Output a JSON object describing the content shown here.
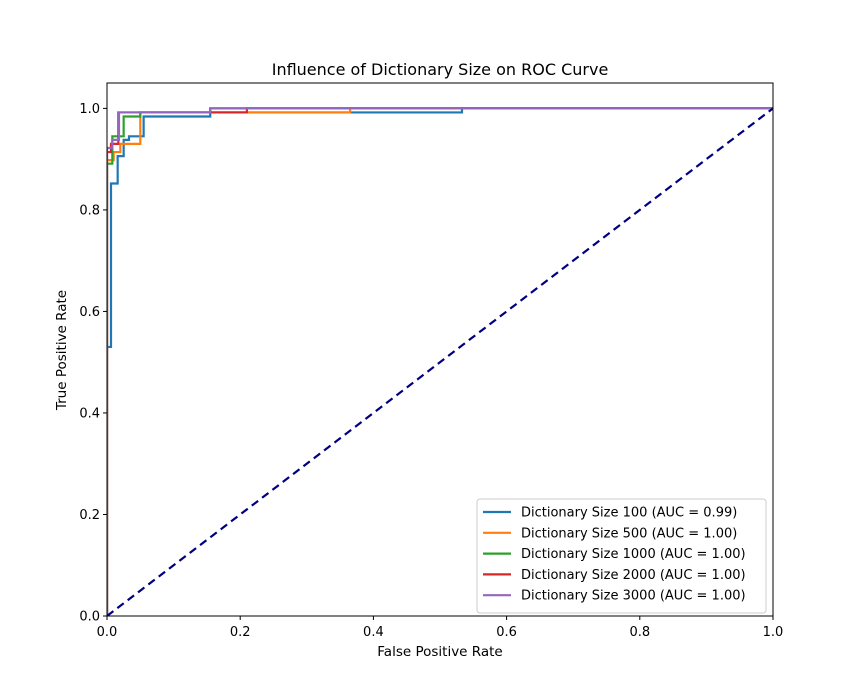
{
  "chart_data": {
    "type": "line",
    "title": "Influence of Dictionary Size on ROC Curve",
    "xlabel": "False Positive Rate",
    "ylabel": "True Positive Rate",
    "xlim": [
      0.0,
      1.0
    ],
    "ylim": [
      0.0,
      1.05
    ],
    "x_ticks": [
      "0.0",
      "0.2",
      "0.4",
      "0.6",
      "0.8",
      "1.0"
    ],
    "y_ticks": [
      "0.0",
      "0.2",
      "0.4",
      "0.6",
      "0.8",
      "1.0"
    ],
    "grid": false,
    "legend_position": "bottom-right",
    "series": [
      {
        "name": "Dictionary Size 100 (AUC = 0.99)",
        "color": "#1f77b4",
        "x": [
          0.0,
          0.0,
          0.006,
          0.006,
          0.016,
          0.016,
          0.025,
          0.025,
          0.033,
          0.033,
          0.055,
          0.055,
          0.155,
          0.155,
          0.533,
          0.533,
          1.0
        ],
        "y": [
          0.0,
          0.53,
          0.53,
          0.852,
          0.852,
          0.906,
          0.906,
          0.938,
          0.938,
          0.945,
          0.945,
          0.984,
          0.984,
          0.992,
          0.992,
          1.0,
          1.0
        ]
      },
      {
        "name": "Dictionary Size 500 (AUC = 1.00)",
        "color": "#ff7f0e",
        "x": [
          0.0,
          0.0,
          0.01,
          0.01,
          0.02,
          0.02,
          0.05,
          0.05,
          0.365,
          0.365,
          1.0
        ],
        "y": [
          0.0,
          0.898,
          0.898,
          0.914,
          0.914,
          0.93,
          0.93,
          0.992,
          0.992,
          1.0,
          1.0
        ]
      },
      {
        "name": "Dictionary Size 1000 (AUC = 1.00)",
        "color": "#2ca02c",
        "x": [
          0.0,
          0.0,
          0.008,
          0.008,
          0.025,
          0.025,
          0.05,
          0.05,
          0.155,
          0.155,
          1.0
        ],
        "y": [
          0.0,
          0.891,
          0.891,
          0.945,
          0.945,
          0.984,
          0.984,
          0.992,
          0.992,
          1.0,
          1.0
        ]
      },
      {
        "name": "Dictionary Size 2000 (AUC = 1.00)",
        "color": "#d62728",
        "x": [
          0.0,
          0.0,
          0.006,
          0.006,
          0.017,
          0.017,
          0.21,
          0.21,
          1.0
        ],
        "y": [
          0.0,
          0.914,
          0.914,
          0.93,
          0.93,
          0.992,
          0.992,
          1.0,
          1.0
        ]
      },
      {
        "name": "Dictionary Size 3000 (AUC = 1.00)",
        "color": "#9467bd",
        "x": [
          0.0,
          0.0,
          0.008,
          0.008,
          0.018,
          0.018,
          0.155,
          0.155,
          1.0
        ],
        "y": [
          0.0,
          0.922,
          0.922,
          0.938,
          0.938,
          0.992,
          0.992,
          1.0,
          1.0
        ]
      }
    ],
    "reference_line": {
      "color": "#000080",
      "style": "dashed",
      "x": [
        0.0,
        1.0
      ],
      "y": [
        0.0,
        1.0
      ]
    }
  }
}
